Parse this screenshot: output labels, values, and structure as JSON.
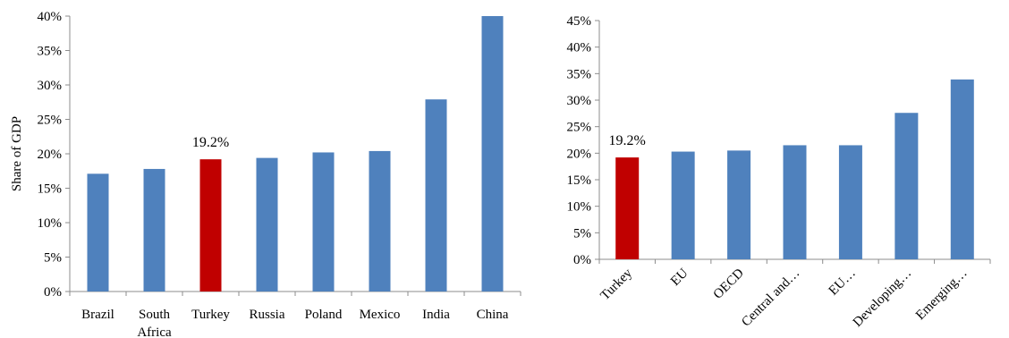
{
  "colors": {
    "bar": "#4f81bd",
    "highlight": "#c00000",
    "axis": "#8c8c8c"
  },
  "chart_data": [
    {
      "type": "bar",
      "categories": [
        [
          "Brazil"
        ],
        [
          "South",
          "Africa"
        ],
        [
          "Turkey"
        ],
        [
          "Russia"
        ],
        [
          "Poland"
        ],
        [
          "Mexico"
        ],
        [
          "India"
        ],
        [
          "China"
        ]
      ],
      "values": [
        17.1,
        17.8,
        19.2,
        19.4,
        20.2,
        20.4,
        27.9,
        40.0
      ],
      "highlight_index": 2,
      "data_labels": [
        {
          "index": 2,
          "text": "19.2%"
        }
      ],
      "ylabel": "Share of GDP",
      "ylim": [
        0,
        40
      ],
      "yticks": [
        "0%",
        "5%",
        "10%",
        "15%",
        "20%",
        "25%",
        "30%",
        "35%",
        "40%"
      ],
      "grid": false
    },
    {
      "type": "bar",
      "categories": [
        [
          "Turkey"
        ],
        [
          "EU"
        ],
        [
          "OECD"
        ],
        [
          "Central and…"
        ],
        [
          "EU…"
        ],
        [
          "Developing…"
        ],
        [
          "Emerging…"
        ]
      ],
      "values": [
        19.2,
        20.3,
        20.5,
        21.5,
        21.5,
        27.6,
        33.9
      ],
      "highlight_index": 0,
      "data_labels": [
        {
          "index": 0,
          "text": "19.2%"
        }
      ],
      "ylabel": "",
      "ylim": [
        0,
        45
      ],
      "yticks": [
        "0%",
        "5%",
        "10%",
        "15%",
        "20%",
        "25%",
        "30%",
        "35%",
        "40%",
        "45%"
      ],
      "grid": false,
      "rotated_labels": true
    }
  ]
}
